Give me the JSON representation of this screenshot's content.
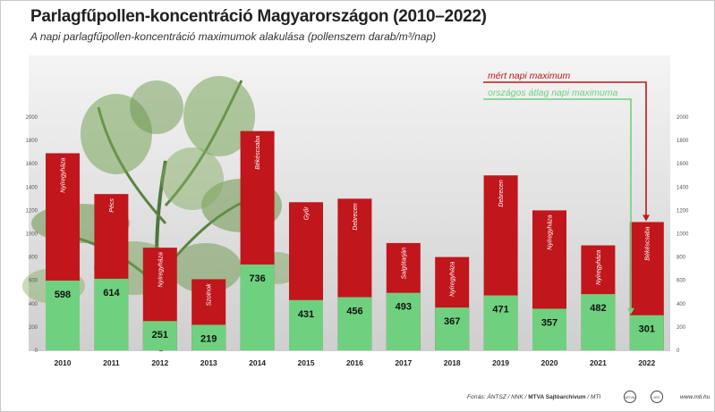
{
  "title": "Parlagfűpollen-koncentráció Magyarországon (2010–2022)",
  "subtitle": "A napi parlagfűpollen-koncentráció maximumok alakulása (pollenszem darab/m³/nap)",
  "chart_data": {
    "type": "bar",
    "categories": [
      "2010",
      "2011",
      "2012",
      "2013",
      "2014",
      "2015",
      "2016",
      "2017",
      "2018",
      "2019",
      "2020",
      "2021",
      "2022"
    ],
    "series": [
      {
        "name": "mért napi maximum",
        "color": "#c0161c",
        "values": [
          1690,
          1340,
          880,
          610,
          1880,
          1270,
          1300,
          920,
          800,
          1500,
          1200,
          900,
          1100
        ],
        "cities": [
          "Nyíregyháza",
          "Pécs",
          "Nyíregyháza",
          "Szolnok",
          "Békéscsaba",
          "Győr",
          "Debrecen",
          "Salgótarján",
          "Nyíregyháza",
          "Debrecen",
          "Nyíregyháza",
          "Nyíregyháza",
          "Békéscsaba"
        ]
      },
      {
        "name": "országos átlag napi maximuma",
        "color": "#6fd17f",
        "values": [
          598,
          614,
          251,
          219,
          736,
          431,
          456,
          493,
          367,
          471,
          357,
          482,
          301
        ]
      }
    ],
    "yticks": [
      "0",
      "200",
      "400",
      "600",
      "800",
      "1000",
      "1200",
      "1400",
      "1600",
      "1800",
      "2000"
    ],
    "ylim": [
      0,
      2000
    ],
    "grid": false,
    "legend_placement": "top-right"
  },
  "footer": {
    "source": "Forrás: ÁNTSZ / NNK / ",
    "archive": "MTVA Sajtóarchívum",
    "agency": " / MTI",
    "logo1": "MTVA",
    "logo2": "MTI",
    "site": "www.mti.hu"
  }
}
